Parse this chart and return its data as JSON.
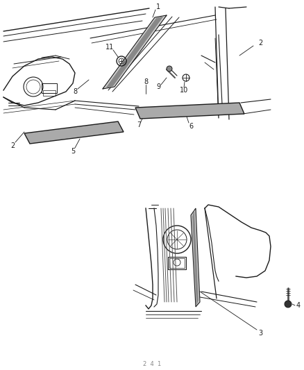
{
  "bg_color": "#ffffff",
  "line_color": "#1a1a1a",
  "fig_width": 4.39,
  "fig_height": 5.33,
  "dpi": 100,
  "label_fs": 7,
  "footer": "2  4  1"
}
